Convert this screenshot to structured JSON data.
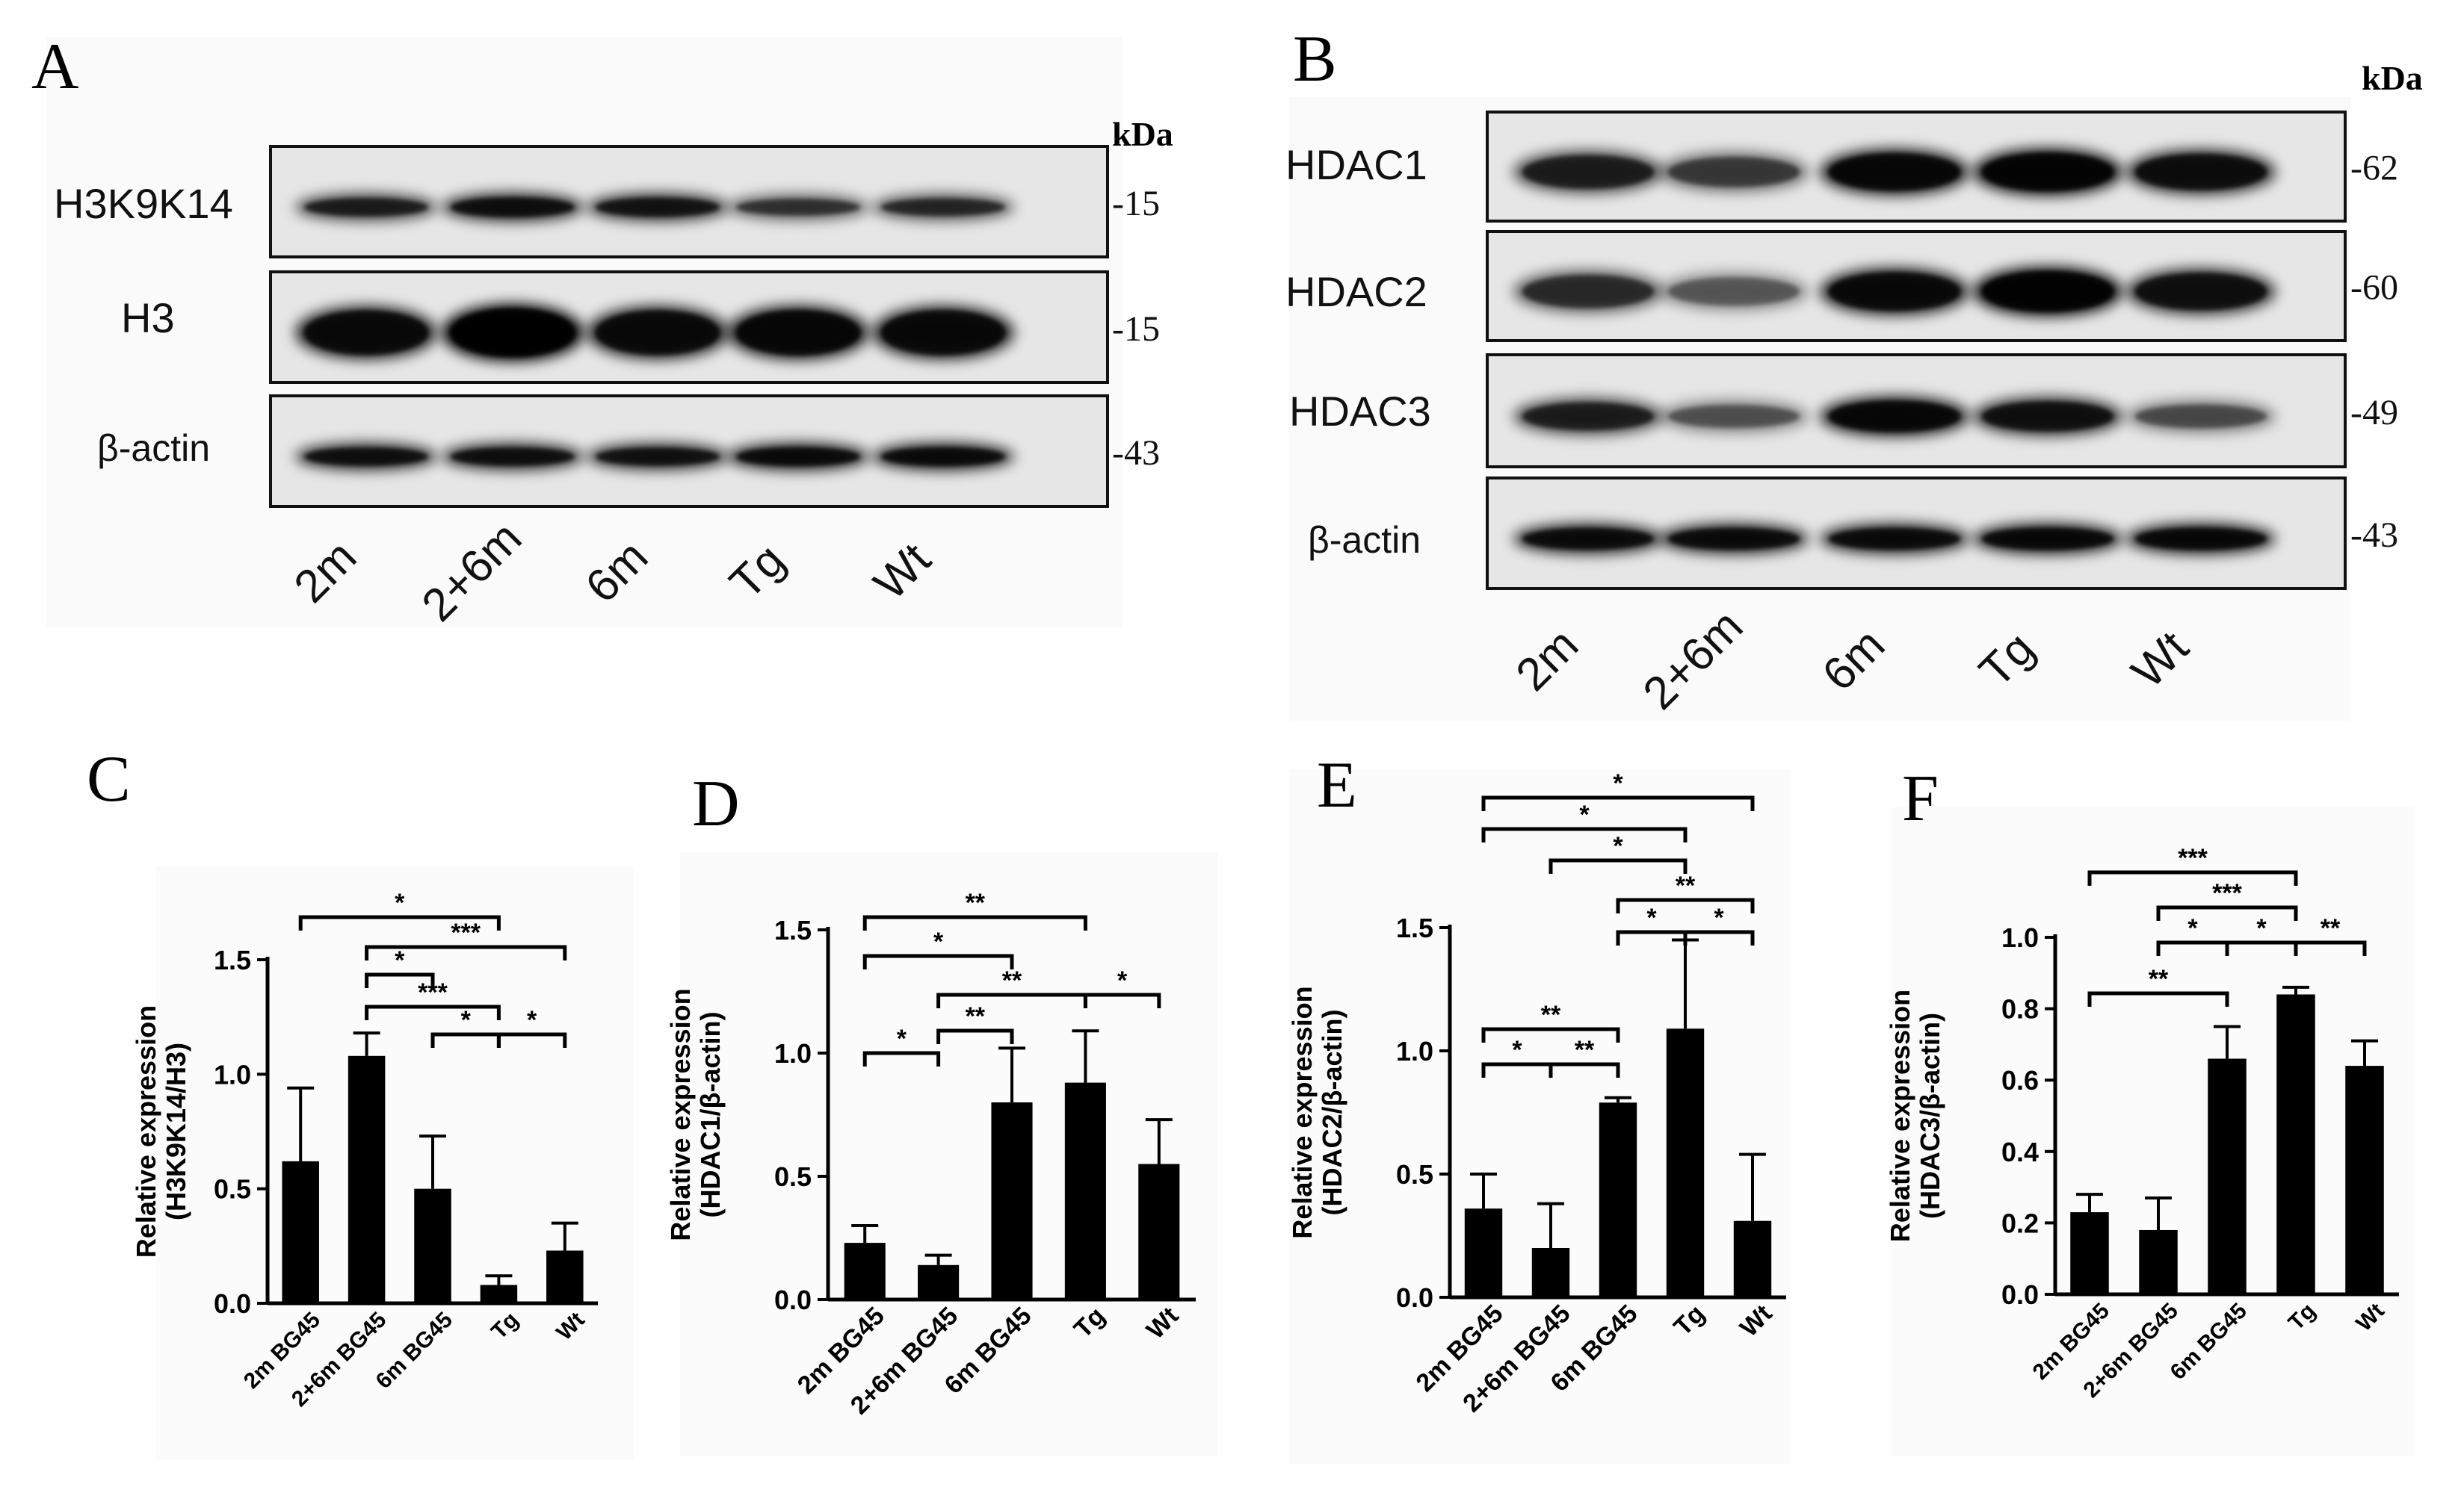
{
  "panel_letters": [
    "A",
    "B",
    "C",
    "D",
    "E",
    "F"
  ],
  "blots": [
    {
      "panel": "A",
      "unit": "kDa",
      "lanes": [
        "2m",
        "2+6m",
        "6m",
        "Tg",
        "Wt"
      ],
      "rows": [
        {
          "label": "H3K9K14",
          "marker": "-15",
          "intensities": [
            0.72,
            0.82,
            0.78,
            0.6,
            0.66
          ]
        },
        {
          "label": "H3",
          "marker": "-15",
          "intensities": [
            0.85,
            1.0,
            0.85,
            0.88,
            0.86
          ]
        },
        {
          "label": "β-actin",
          "marker": "-43",
          "intensities": [
            0.82,
            0.82,
            0.8,
            0.86,
            0.86
          ]
        }
      ]
    },
    {
      "panel": "B",
      "unit": "kDa",
      "lanes": [
        "2m",
        "2+6m",
        "6m",
        "Tg",
        "Wt"
      ],
      "rows": [
        {
          "label": "HDAC1",
          "marker": "-62",
          "intensities": [
            0.7,
            0.55,
            0.88,
            0.92,
            0.82
          ]
        },
        {
          "label": "HDAC2",
          "marker": "-60",
          "intensities": [
            0.62,
            0.42,
            0.86,
            0.95,
            0.8
          ]
        },
        {
          "label": "HDAC3",
          "marker": "-49",
          "intensities": [
            0.7,
            0.45,
            0.88,
            0.8,
            0.48
          ]
        },
        {
          "label": "β-actin",
          "marker": "-43",
          "intensities": [
            0.85,
            0.85,
            0.85,
            0.88,
            0.88
          ]
        }
      ]
    }
  ],
  "chart_data": [
    {
      "panel": "C",
      "type": "bar",
      "ylabel_lines": [
        "Relative expression",
        "(H3K9K14/H3)"
      ],
      "categories": [
        "2m BG45",
        "2+6m BG45",
        "6m BG45",
        "Tg",
        "Wt"
      ],
      "values": [
        0.62,
        1.08,
        0.5,
        0.08,
        0.23
      ],
      "errors": [
        0.32,
        0.1,
        0.23,
        0.04,
        0.12
      ],
      "ylim": [
        0,
        1.5
      ],
      "yticks": [
        "0.0",
        "0.5",
        "1.0",
        "1.5"
      ],
      "brackets": [
        {
          "from": 0,
          "to": 3,
          "label": "*"
        },
        {
          "from": 1,
          "to": 4,
          "label": "***"
        },
        {
          "from": 1,
          "to": 2,
          "label": "*"
        },
        {
          "from": 1,
          "to": 3,
          "label": "***"
        },
        {
          "from": 2,
          "to": 3,
          "label": "*"
        },
        {
          "from": 3,
          "to": 4,
          "label": "*"
        }
      ]
    },
    {
      "panel": "D",
      "type": "bar",
      "ylabel_lines": [
        "Relative expression",
        "(HDAC1/β-actin)"
      ],
      "categories": [
        "2m BG45",
        "2+6m BG45",
        "6m BG45",
        "Tg",
        "Wt"
      ],
      "values": [
        0.23,
        0.14,
        0.8,
        0.88,
        0.55
      ],
      "errors": [
        0.07,
        0.04,
        0.22,
        0.21,
        0.18
      ],
      "ylim": [
        0,
        1.5
      ],
      "yticks": [
        "0.0",
        "0.5",
        "1.0",
        "1.5"
      ],
      "brackets": [
        {
          "from": 0,
          "to": 3,
          "label": "**"
        },
        {
          "from": 0,
          "to": 2,
          "label": "*"
        },
        {
          "from": 1,
          "to": 3,
          "label": "**"
        },
        {
          "from": 3,
          "to": 4,
          "label": "*"
        },
        {
          "from": 1,
          "to": 2,
          "label": "**"
        },
        {
          "from": 0,
          "to": 1,
          "label": "*"
        }
      ]
    },
    {
      "panel": "E",
      "type": "bar",
      "ylabel_lines": [
        "Relative expression",
        "(HDAC2/β-actin)"
      ],
      "categories": [
        "2m BG45",
        "2+6m BG45",
        "6m BG45",
        "Tg",
        "Wt"
      ],
      "values": [
        0.36,
        0.2,
        0.79,
        1.09,
        0.31
      ],
      "errors": [
        0.14,
        0.18,
        0.02,
        0.36,
        0.27
      ],
      "ylim": [
        0,
        1.5
      ],
      "yticks": [
        "0.0",
        "0.5",
        "1.0",
        "1.5"
      ],
      "brackets": [
        {
          "from": 0,
          "to": 4,
          "label": "*"
        },
        {
          "from": 0,
          "to": 3,
          "label": "*"
        },
        {
          "from": 1,
          "to": 3,
          "label": "*"
        },
        {
          "from": 2,
          "to": 4,
          "label": "**"
        },
        {
          "from": 2,
          "to": 3,
          "label": "*"
        },
        {
          "from": 3,
          "to": 4,
          "label": "*"
        },
        {
          "from": 0,
          "to": 2,
          "label": "**"
        },
        {
          "from": 0,
          "to": 1,
          "label": "*"
        },
        {
          "from": 1,
          "to": 2,
          "label": "**"
        }
      ]
    },
    {
      "panel": "F",
      "type": "bar",
      "ylabel_lines": [
        "Relative expression",
        "(HDAC3/β-actin)"
      ],
      "categories": [
        "2m BG45",
        "2+6m BG45",
        "6m BG45",
        "Tg",
        "Wt"
      ],
      "values": [
        0.23,
        0.18,
        0.66,
        0.84,
        0.64
      ],
      "errors": [
        0.05,
        0.09,
        0.09,
        0.02,
        0.07
      ],
      "ylim": [
        0,
        1.0
      ],
      "yticks": [
        "0.0",
        "0.2",
        "0.4",
        "0.6",
        "0.8",
        "1.0"
      ],
      "brackets": [
        {
          "from": 0,
          "to": 3,
          "label": "***"
        },
        {
          "from": 1,
          "to": 3,
          "label": "***"
        },
        {
          "from": 1,
          "to": 2,
          "label": "*"
        },
        {
          "from": 2,
          "to": 3,
          "label": "*"
        },
        {
          "from": 3,
          "to": 4,
          "label": "**"
        },
        {
          "from": 0,
          "to": 2,
          "label": "**"
        }
      ]
    }
  ]
}
